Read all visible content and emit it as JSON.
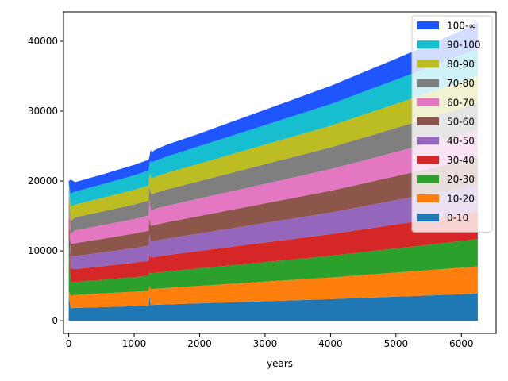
{
  "chart_data": {
    "type": "area",
    "stacked": true,
    "xlabel": "years",
    "ylabel": "",
    "xlim": [
      -80,
      6530
    ],
    "ylim": [
      -1800,
      44200
    ],
    "x_ticks": [
      0,
      1000,
      2000,
      3000,
      4000,
      5000,
      6000
    ],
    "y_ticks": [
      0,
      10000,
      20000,
      30000,
      40000
    ],
    "grid": false,
    "legend_position": "top-right",
    "x": [
      0,
      30,
      100,
      500,
      1000,
      1220,
      1235,
      1250,
      1270,
      1300,
      1350,
      1500,
      2000,
      3000,
      4000,
      5000,
      6000,
      6250
    ],
    "series": [
      {
        "name": "0-10",
        "color": "#1f77b4",
        "values": [
          3600,
          1800,
          1850,
          1950,
          2080,
          2150,
          3500,
          2200,
          2260,
          2280,
          2300,
          2350,
          2500,
          2800,
          3100,
          3450,
          3800,
          3900
        ]
      },
      {
        "name": "10-20",
        "color": "#ff7f0e",
        "values": [
          600,
          1800,
          1850,
          1950,
          2080,
          2150,
          1500,
          2300,
          2260,
          2280,
          2300,
          2350,
          2500,
          2800,
          3100,
          3450,
          3800,
          3900
        ]
      },
      {
        "name": "20-30",
        "color": "#2ca02c",
        "values": [
          7400,
          2000,
          1850,
          1950,
          2080,
          2150,
          2000,
          2300,
          2260,
          2280,
          2300,
          2350,
          2500,
          2800,
          3100,
          3450,
          3800,
          3900
        ]
      },
      {
        "name": "30-40",
        "color": "#d62728",
        "values": [
          4000,
          1900,
          1850,
          1950,
          2080,
          2150,
          2500,
          2300,
          2260,
          2280,
          2300,
          2350,
          2500,
          2800,
          3100,
          3450,
          3800,
          3900
        ]
      },
      {
        "name": "40-50",
        "color": "#9467bd",
        "values": [
          1500,
          1800,
          1850,
          1950,
          2080,
          2150,
          2800,
          2300,
          2260,
          2280,
          2300,
          2350,
          2500,
          2800,
          3100,
          3450,
          3800,
          3900
        ]
      },
      {
        "name": "50-60",
        "color": "#8c564b",
        "values": [
          800,
          1700,
          1850,
          1950,
          2080,
          2150,
          2600,
          2300,
          2260,
          2280,
          2300,
          2350,
          2500,
          2800,
          3100,
          3450,
          3800,
          3900
        ]
      },
      {
        "name": "60-70",
        "color": "#e377c2",
        "values": [
          600,
          1500,
          1850,
          1950,
          2080,
          2150,
          2400,
          2300,
          2260,
          2280,
          2300,
          2350,
          2500,
          2800,
          3100,
          3450,
          3800,
          3900
        ]
      },
      {
        "name": "70-80",
        "color": "#7f7f7f",
        "values": [
          600,
          1800,
          1850,
          1950,
          2080,
          2150,
          2100,
          2300,
          2260,
          2280,
          2300,
          2350,
          2500,
          2800,
          3100,
          3450,
          3800,
          3900
        ]
      },
      {
        "name": "80-90",
        "color": "#bcbd22",
        "values": [
          400,
          2100,
          1850,
          1950,
          2080,
          2150,
          1700,
          2300,
          2260,
          2280,
          2300,
          2350,
          2500,
          2800,
          3100,
          3450,
          3800,
          3900
        ]
      },
      {
        "name": "90-100",
        "color": "#17becf",
        "values": [
          300,
          1800,
          1850,
          1950,
          2080,
          2150,
          1400,
          2300,
          2260,
          2280,
          2300,
          2350,
          2500,
          2800,
          3100,
          3450,
          3800,
          3900
        ]
      },
      {
        "name": "100-∞",
        "color": "#1f55ff",
        "values": [
          200,
          2000,
          1350,
          1400,
          1500,
          1550,
          1000,
          1550,
          1500,
          1550,
          1600,
          1700,
          1800,
          2200,
          2600,
          3000,
          3500,
          3700
        ]
      }
    ]
  }
}
